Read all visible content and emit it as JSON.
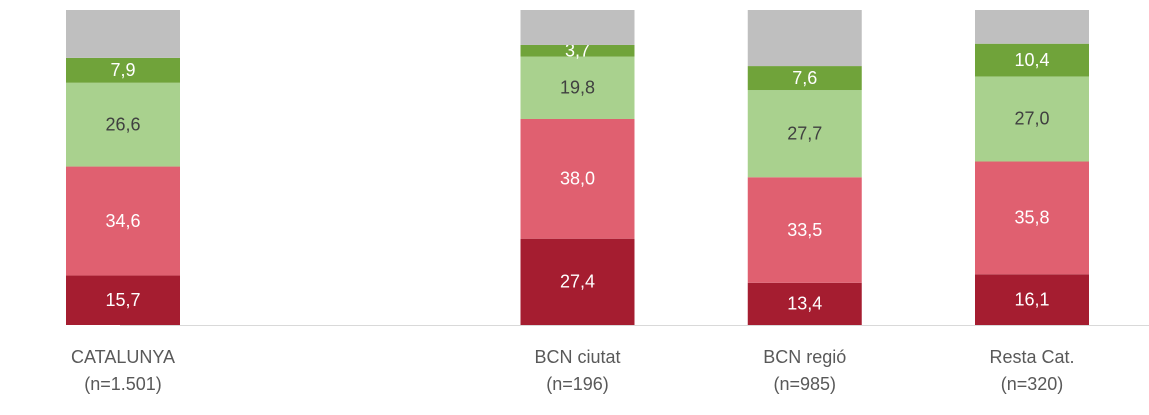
{
  "chart_data": {
    "type": "stacked-bar",
    "categories": [
      [
        "CATALUNYA",
        "(n=1.501)"
      ],
      null,
      [
        "BCN ciutat",
        "(n=196)"
      ],
      [
        "BCN regió",
        "(n=985)"
      ],
      [
        "Resta Cat.",
        "(n=320)"
      ]
    ],
    "series": [
      {
        "color": "#a51d30",
        "label_color": "#ffffff",
        "values": [
          15.7,
          null,
          27.4,
          13.4,
          16.1
        ],
        "value_labels": [
          "15,7",
          null,
          "27,4",
          "13,4",
          "16,1"
        ]
      },
      {
        "color": "#e06070",
        "label_color": "#ffffff",
        "values": [
          34.6,
          null,
          38.0,
          33.5,
          35.8
        ],
        "value_labels": [
          "34,6",
          null,
          "38,0",
          "33,5",
          "35,8"
        ]
      },
      {
        "color": "#a9d18e",
        "label_color": "#404040",
        "values": [
          26.6,
          null,
          19.8,
          27.7,
          27.0
        ],
        "value_labels": [
          "26,6",
          null,
          "19,8",
          "27,7",
          "27,0"
        ]
      },
      {
        "color": "#70a33a",
        "label_color": "#ffffff",
        "values": [
          7.9,
          null,
          3.7,
          7.6,
          10.4
        ],
        "value_labels": [
          "7,9",
          null,
          "3,7",
          "7,6",
          "10,4"
        ]
      },
      {
        "color": "#bfbfbf",
        "values": [
          15.2,
          null,
          11.1,
          17.8,
          10.7
        ]
      }
    ],
    "ylim": [
      0,
      100
    ]
  }
}
